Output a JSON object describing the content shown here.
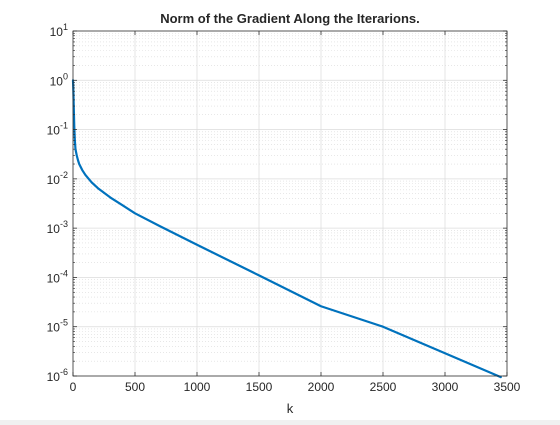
{
  "chart_data": {
    "type": "line",
    "title": "Norm of the Gradient Along the Iterarions.",
    "xlabel": "k",
    "ylabel": "",
    "xlim": [
      0,
      3500
    ],
    "ylim": [
      1e-06,
      10
    ],
    "yscale": "log",
    "grid": true,
    "minor_grid": true,
    "x_ticks": [
      0,
      500,
      1000,
      1500,
      2000,
      2500,
      3000,
      3500
    ],
    "x_tick_labels": [
      "0",
      "500",
      "1000",
      "1500",
      "2000",
      "2500",
      "3000",
      "3500"
    ],
    "y_ticks": [
      1e-06,
      1e-05,
      0.0001,
      0.001,
      0.01,
      0.1,
      1,
      10
    ],
    "y_tick_labels": [
      {
        "base": "10",
        "exp": "-6"
      },
      {
        "base": "10",
        "exp": "-5"
      },
      {
        "base": "10",
        "exp": "-4"
      },
      {
        "base": "10",
        "exp": "-3"
      },
      {
        "base": "10",
        "exp": "-2"
      },
      {
        "base": "10",
        "exp": "-1"
      },
      {
        "base": "10",
        "exp": "0"
      },
      {
        "base": "10",
        "exp": "1"
      }
    ],
    "series": [
      {
        "color": "#0072bd",
        "x": [
          0,
          3,
          6,
          10,
          15,
          20,
          30,
          40,
          50,
          75,
          100,
          150,
          200,
          300,
          400,
          500,
          700,
          1000,
          1500,
          2000,
          2500,
          3000,
          3450
        ],
        "y": [
          1.0,
          0.6,
          0.3,
          0.12,
          0.06,
          0.04,
          0.03,
          0.024,
          0.02,
          0.015,
          0.012,
          0.0085,
          0.0065,
          0.0042,
          0.0029,
          0.002,
          0.0011,
          0.00046,
          0.00011,
          2.6e-05,
          1e-05,
          2.9e-06,
          9.5e-07
        ]
      }
    ]
  }
}
